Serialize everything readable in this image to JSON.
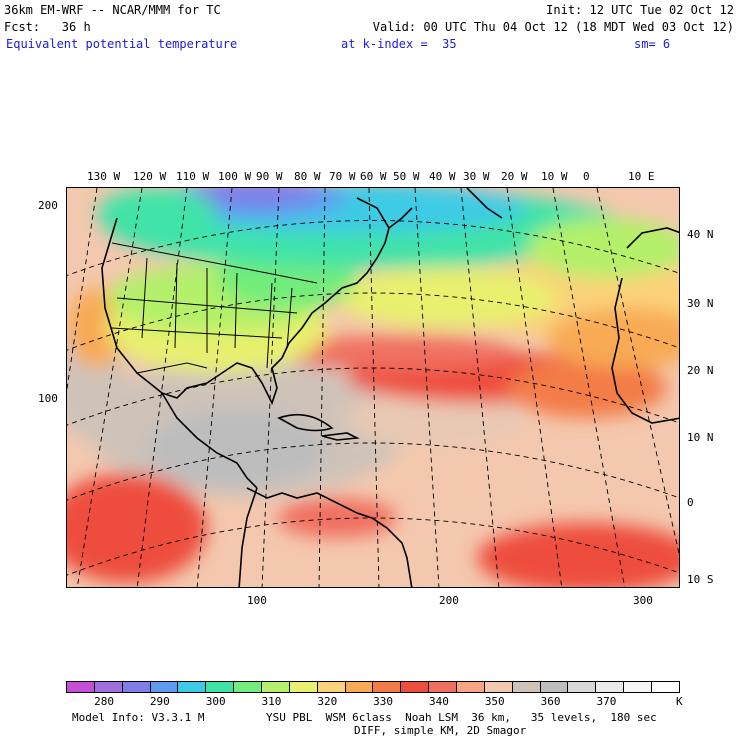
{
  "header": {
    "model": "36km EM-WRF -- NCAR/MMM for TC",
    "init": "Init: 12 UTC Tue 02 Oct 12",
    "fcst": "Fcst:   36 h",
    "valid": "Valid: 00 UTC Thu 04 Oct 12 (18 MDT Wed 03 Oct 12)",
    "field": "Equivalent potential temperature",
    "level": "at k-index =  35",
    "smooth": "sm= 6"
  },
  "map": {
    "top_lon_labels": [
      "130 W",
      "120 W",
      "110 W",
      "100 W",
      "90 W",
      "80 W",
      "70 W",
      "60 W",
      "50 W",
      "40 W",
      "30 W",
      "20 W",
      "10 W",
      "0",
      "10 E"
    ],
    "right_lat_labels": [
      "40 N",
      "30 N",
      "20 N",
      "10 N",
      "0",
      "10 S"
    ],
    "left_grid_labels": [
      "200",
      "100"
    ],
    "bottom_grid_labels": [
      "100",
      "200",
      "300"
    ]
  },
  "colorbar": {
    "colors": [
      "#c550d6",
      "#a16fe0",
      "#7f7fe8",
      "#5f9bf0",
      "#3ccbe6",
      "#3fe3a8",
      "#72ec7a",
      "#b4f06a",
      "#e8f06e",
      "#fbd27a",
      "#f8aa55",
      "#f37c46",
      "#ee4e3d",
      "#f07060",
      "#f8a584",
      "#f4c8ae",
      "#cfc3b9",
      "#bdbdbd",
      "#d8d8d8",
      "#eaeaea",
      "#f6f6f6",
      "#ffffff"
    ],
    "labels": [
      "280",
      "290",
      "300",
      "310",
      "320",
      "330",
      "340",
      "350",
      "360",
      "370"
    ],
    "unit": "K"
  },
  "footer": {
    "info": "Model Info: V3.3.1 M",
    "physics": "YSU PBL  WSM 6class  Noah LSM  36 km,   35 levels,  180 sec",
    "diff": "DIFF, simple KM, 2D Smagor"
  }
}
